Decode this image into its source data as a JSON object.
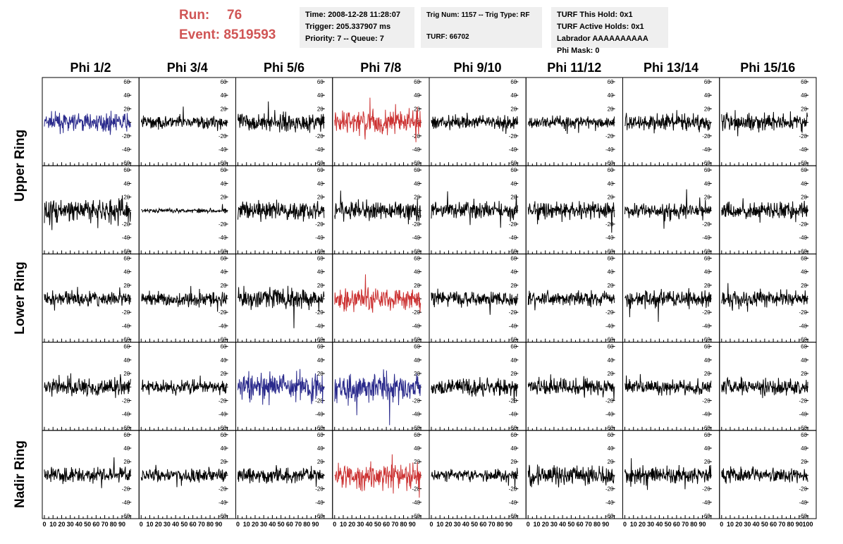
{
  "header": {
    "run_label": "Run:",
    "run_value": "76",
    "event_label": "Event:",
    "event_value": "8519593"
  },
  "info_time": {
    "line1": "Time: 2008-12-28 11:28:07",
    "line2": "Trigger: 205.337907 ms",
    "line3": "Priority: 7 -- Queue: 7"
  },
  "info_trig": {
    "line1": "Trig Num: 1157 -- Trig Type: RF",
    "line2": "TURF: 66702"
  },
  "info_turf": {
    "line1": "TURF This Hold: 0x1",
    "line2": "TURF Active Holds: 0x1",
    "line3": "Labrador AAAAAAAAAA",
    "line4": "Phi Mask: 0"
  },
  "colors": {
    "black": "#000000",
    "blue": "#2a2a8c",
    "red": "#cc3333",
    "title": "#d05555"
  },
  "chart_data": {
    "type": "line",
    "columns": [
      "Phi 1/2",
      "Phi 3/4",
      "Phi 5/6",
      "Phi 7/8",
      "Phi 9/10",
      "Phi 11/12",
      "Phi 13/14",
      "Phi 15/16"
    ],
    "ring_labels": [
      "Upper Ring",
      "Lower Ring",
      "Nadir Ring"
    ],
    "xlim": [
      0,
      100
    ],
    "ylim": [
      -60,
      60
    ],
    "x_tick_labels": [
      "0",
      "10",
      "20",
      "30",
      "40",
      "50",
      "60",
      "70",
      "80",
      "90",
      "100"
    ],
    "y_tick_labels": [
      "-60",
      "-40",
      "-20",
      "0",
      "20",
      "40",
      "60"
    ],
    "trace_colors": [
      [
        "blue",
        "black",
        "black",
        "red",
        "black",
        "black",
        "black",
        "black"
      ],
      [
        "black",
        "black",
        "black",
        "black",
        "black",
        "black",
        "black",
        "black"
      ],
      [
        "black",
        "black",
        "black",
        "red",
        "black",
        "black",
        "black",
        "black"
      ],
      [
        "black",
        "black",
        "blue",
        "blue",
        "black",
        "black",
        "black",
        "black"
      ],
      [
        "black",
        "black",
        "black",
        "red",
        "black",
        "black",
        "black",
        "black"
      ]
    ],
    "trace_amplitudes": [
      [
        16,
        12,
        16,
        24,
        12,
        12,
        16,
        16
      ],
      [
        22,
        4,
        18,
        18,
        16,
        15,
        15,
        16
      ],
      [
        13,
        13,
        20,
        22,
        14,
        14,
        16,
        15
      ],
      [
        17,
        12,
        24,
        24,
        16,
        16,
        14,
        16
      ],
      [
        14,
        12,
        14,
        26,
        11,
        18,
        16,
        14
      ]
    ]
  }
}
